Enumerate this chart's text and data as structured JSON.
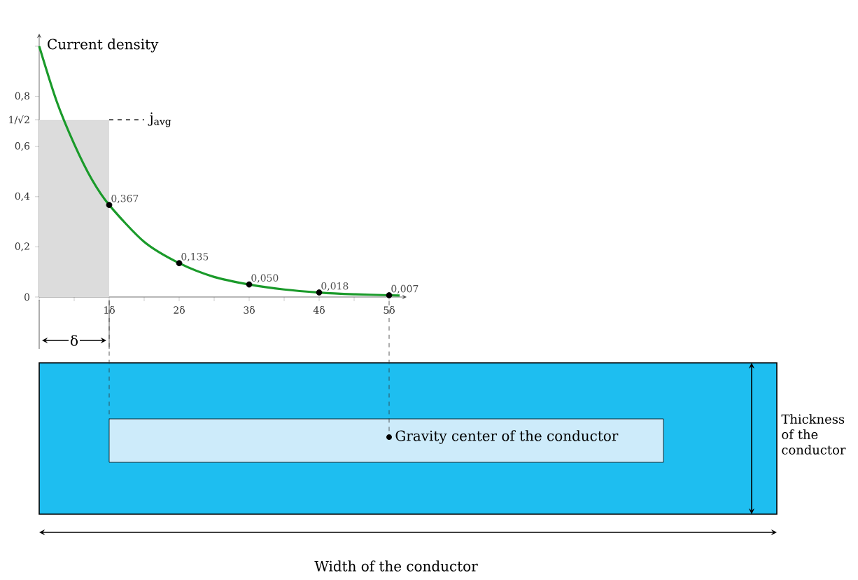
{
  "chart_data": {
    "type": "line",
    "ylabel": "Current density",
    "xlim": [
      0,
      5.25
    ],
    "ylim": [
      0,
      1.05
    ],
    "xticks": [
      {
        "value": 0,
        "label": null
      },
      {
        "value": 0.5,
        "label": null
      },
      {
        "value": 1,
        "label": "1δ"
      },
      {
        "value": 1.5,
        "label": null
      },
      {
        "value": 2,
        "label": "2δ"
      },
      {
        "value": 2.5,
        "label": null
      },
      {
        "value": 3,
        "label": "3δ"
      },
      {
        "value": 3.5,
        "label": null
      },
      {
        "value": 4,
        "label": "4δ"
      },
      {
        "value": 4.5,
        "label": null
      },
      {
        "value": 5,
        "label": "5δ"
      }
    ],
    "yticks": [
      {
        "value": 0,
        "label": "0"
      },
      {
        "value": 0.2,
        "label": "0,2"
      },
      {
        "value": 0.4,
        "label": "0,4"
      },
      {
        "value": 0.6,
        "label": "0,6"
      },
      {
        "value": 0.707,
        "label": "1/√2"
      },
      {
        "value": 0.8,
        "label": "0,8"
      },
      {
        "value": 1,
        "label": null
      }
    ],
    "series": [
      {
        "color": "#1a9a2a",
        "x": [
          0,
          0.25,
          0.5,
          0.75,
          1,
          1.5,
          2,
          2.5,
          3,
          3.5,
          4,
          4.5,
          5,
          5.15
        ],
        "values": [
          1.0,
          0.78,
          0.61,
          0.47,
          0.367,
          0.22,
          0.135,
          0.08,
          0.05,
          0.03,
          0.018,
          0.011,
          0.007,
          0.006
        ],
        "marker": "none"
      },
      {
        "type": "scatter",
        "color": "#000000",
        "x": [
          1,
          2,
          3,
          4,
          5
        ],
        "values": [
          0.367,
          0.135,
          0.05,
          0.018,
          0.007
        ],
        "marker": "circle",
        "value_labels": [
          "0,367",
          "0,135",
          "0,050",
          "0,018",
          "0,007"
        ]
      }
    ],
    "ref_lines": [
      {
        "axis": "y",
        "value": 0.707,
        "label": "j$_{avg}$",
        "line_style": "dashed",
        "color": "#555555"
      }
    ],
    "bands": [
      {
        "axis": "x",
        "from": 0,
        "to": 1,
        "color": "#dcdcdc"
      }
    ],
    "annotations": [
      "δ",
      "Gravity center of the conductor",
      "Thickness of the conductor",
      "Width of the conductor"
    ]
  }
}
